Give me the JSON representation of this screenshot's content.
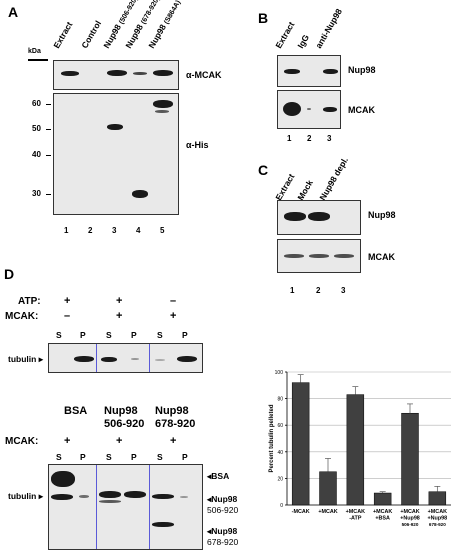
{
  "panel_a": {
    "letter": "A",
    "kda": "kDa",
    "lanes": [
      "Extract",
      "Control",
      "Nup98",
      "Nup98",
      "Nup98"
    ],
    "lane_sub": [
      "",
      "",
      "(506-920)",
      "(678-920)",
      "(S864A)"
    ],
    "top_label": "α-MCAK",
    "bottom_label": "α-His",
    "mw": [
      "60",
      "50",
      "40",
      "30"
    ],
    "numbers": [
      "1",
      "2",
      "3",
      "4",
      "5"
    ]
  },
  "panel_b": {
    "letter": "B",
    "lanes": [
      "Extract",
      "IgG",
      "anti-Nup98"
    ],
    "top_label": "Nup98",
    "bottom_label": "MCAK",
    "numbers": [
      "1",
      "2",
      "3"
    ]
  },
  "panel_c": {
    "letter": "C",
    "lanes": [
      "Extract",
      "Mock",
      "Nup98 depl."
    ],
    "top_label": "Nup98",
    "bottom_label": "MCAK",
    "numbers": [
      "1",
      "2",
      "3"
    ]
  },
  "panel_d": {
    "letter": "D",
    "atp_label": "ATP:",
    "mcak_label": "MCAK:",
    "atp": [
      "+",
      "+",
      "–"
    ],
    "mcak": [
      "–",
      "+",
      "+"
    ],
    "sp": [
      "S",
      "P",
      "S",
      "P",
      "S",
      "P"
    ],
    "tubulin": "tubulin",
    "mcak2": [
      "+",
      "+",
      "+"
    ],
    "groups": [
      "BSA",
      "Nup98",
      "Nup98"
    ],
    "groups_sub": [
      "",
      "506-920",
      "678-920"
    ],
    "right_labels": [
      "BSA",
      "Nup98",
      "506-920",
      "Nup98",
      "678-920"
    ]
  },
  "chart_data": {
    "type": "bar",
    "ylabel": "Percent tubulin pelleted",
    "ylim": [
      0,
      100
    ],
    "yticks": [
      "0",
      "20",
      "40",
      "60",
      "80",
      "100"
    ],
    "categories": [
      "-MCAK",
      "+MCAK",
      "+MCAK -ATP",
      "+MCAK +BSA",
      "+MCAK +Nup98 506-920",
      "+MCAK +Nup98 678-920"
    ],
    "category_lines": [
      [
        "-MCAK"
      ],
      [
        "+MCAK"
      ],
      [
        "+MCAK",
        "-ATP"
      ],
      [
        "+MCAK",
        "+BSA"
      ],
      [
        "+MCAK",
        "+Nup98",
        "506-920"
      ],
      [
        "+MCAK",
        "+Nup98",
        "678-920"
      ]
    ],
    "values": [
      92,
      25,
      83,
      9,
      69,
      10
    ],
    "errors": [
      6,
      10,
      6,
      1,
      7,
      4
    ],
    "bar_color": "#404040",
    "grid": true
  }
}
